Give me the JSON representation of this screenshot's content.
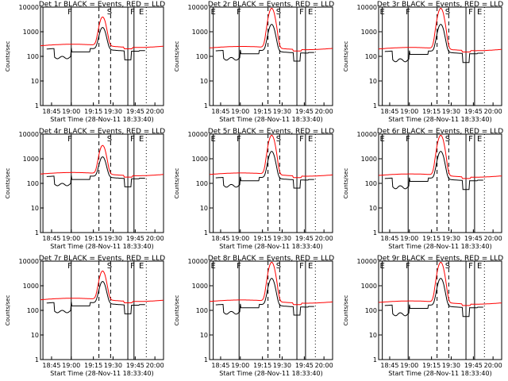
{
  "colors": {
    "events": "#000000",
    "lld": "#ff0000",
    "background": "#ffffff"
  },
  "chart_data": [
    {
      "type": "line",
      "title": "Det 1r  BLACK = Events, RED = LLD",
      "xlabel": "Start Time (28-Nov-11 18:33:40)",
      "ylabel": "Counts/sec",
      "x_tick_labels": [
        "18:45",
        "19:00",
        "19:15",
        "19:30",
        "19:45",
        "20:00"
      ],
      "y_tick_labels": [
        "10000",
        "1000",
        "100",
        "10",
        "1"
      ],
      "ylim": [
        1,
        10000
      ],
      "y_scale": "log",
      "grid": false,
      "interval_marks": [
        "F",
        "S",
        "F",
        "E"
      ],
      "series": [
        {
          "name": "Events",
          "color": "#000000",
          "peak": 1500,
          "dip": 90,
          "base": 190
        },
        {
          "name": "LLD",
          "color": "#ff0000",
          "peak": 4000,
          "base": 270
        }
      ]
    },
    {
      "type": "line",
      "title": "Det 2r  BLACK = Events, RED = LLD",
      "xlabel": "Start Time (28-Nov-11 18:33:40)",
      "ylabel": "Counts/sec",
      "x_tick_labels": [
        "18:45",
        "19:00",
        "19:15",
        "19:30",
        "19:45",
        "20:00"
      ],
      "y_tick_labels": [
        "10000",
        "1000",
        "100",
        "10",
        "1"
      ],
      "ylim": [
        1,
        10000
      ],
      "y_scale": "log",
      "grid": false,
      "interval_marks": [
        "E",
        "F",
        "S",
        "F",
        "E"
      ],
      "series": [
        {
          "name": "Events",
          "color": "#000000",
          "peak": 2000,
          "dip": 80,
          "base": 160
        },
        {
          "name": "LLD",
          "color": "#ff0000",
          "peak": 9000,
          "base": 220
        }
      ]
    },
    {
      "type": "line",
      "title": "Det 3r  BLACK = Events, RED = LLD",
      "xlabel": "Start Time (28-Nov-11 18:33:40)",
      "ylabel": "Counts/sec",
      "x_tick_labels": [
        "18:45",
        "19:00",
        "19:15",
        "19:30",
        "19:45",
        "20:00"
      ],
      "y_tick_labels": [
        "10000",
        "1000",
        "100",
        "10",
        "1"
      ],
      "ylim": [
        1,
        10000
      ],
      "y_scale": "log",
      "grid": false,
      "interval_marks": [
        "E",
        "F",
        "S",
        "F",
        "E"
      ],
      "series": [
        {
          "name": "Events",
          "color": "#000000",
          "peak": 2000,
          "dip": 70,
          "base": 150
        },
        {
          "name": "LLD",
          "color": "#ff0000",
          "peak": 9000,
          "base": 200
        }
      ]
    },
    {
      "type": "line",
      "title": "Det 4r  BLACK = Events, RED = LLD",
      "xlabel": "Start Time (28-Nov-11 18:33:40)",
      "ylabel": "Counts/sec",
      "x_tick_labels": [
        "18:45",
        "19:00",
        "19:15",
        "19:30",
        "19:45",
        "20:00"
      ],
      "y_tick_labels": [
        "10000",
        "1000",
        "100",
        "10",
        "1"
      ],
      "ylim": [
        1,
        10000
      ],
      "y_scale": "log",
      "grid": false,
      "interval_marks": [
        "F",
        "S",
        "F",
        "E"
      ],
      "series": [
        {
          "name": "Events",
          "color": "#000000",
          "peak": 1200,
          "dip": 90,
          "base": 180
        },
        {
          "name": "LLD",
          "color": "#ff0000",
          "peak": 3500,
          "base": 240
        }
      ]
    },
    {
      "type": "line",
      "title": "Det 5r  BLACK = Events, RED = LLD",
      "xlabel": "Start Time (28-Nov-11 18:33:40)",
      "ylabel": "Counts/sec",
      "x_tick_labels": [
        "18:45",
        "19:00",
        "19:15",
        "19:30",
        "19:45",
        "20:00"
      ],
      "y_tick_labels": [
        "10000",
        "1000",
        "100",
        "10",
        "1"
      ],
      "ylim": [
        1,
        10000
      ],
      "y_scale": "log",
      "grid": false,
      "interval_marks": [
        "E",
        "F",
        "S",
        "F",
        "E"
      ],
      "series": [
        {
          "name": "Events",
          "color": "#000000",
          "peak": 2000,
          "dip": 80,
          "base": 160
        },
        {
          "name": "LLD",
          "color": "#ff0000",
          "peak": 9000,
          "base": 230
        }
      ]
    },
    {
      "type": "line",
      "title": "Det 6r  BLACK = Events, RED = LLD",
      "xlabel": "Start Time (28-Nov-11 18:33:40)",
      "ylabel": "Counts/sec",
      "x_tick_labels": [
        "18:45",
        "19:00",
        "19:15",
        "19:30",
        "19:45",
        "20:00"
      ],
      "y_tick_labels": [
        "10000",
        "1000",
        "100",
        "10",
        "1"
      ],
      "ylim": [
        1,
        10000
      ],
      "y_scale": "log",
      "grid": false,
      "interval_marks": [
        "E",
        "F",
        "S",
        "F",
        "E"
      ],
      "series": [
        {
          "name": "Events",
          "color": "#000000",
          "peak": 2000,
          "dip": 70,
          "base": 150
        },
        {
          "name": "LLD",
          "color": "#ff0000",
          "peak": 9000,
          "base": 210
        }
      ]
    },
    {
      "type": "line",
      "title": "Det 7r  BLACK = Events, RED = LLD",
      "xlabel": "Start Time (28-Nov-11 18:33:40)",
      "ylabel": "Counts/sec",
      "x_tick_labels": [
        "18:45",
        "19:00",
        "19:15",
        "19:30",
        "19:45",
        "20:00"
      ],
      "y_tick_labels": [
        "10000",
        "1000",
        "100",
        "10",
        "1"
      ],
      "ylim": [
        1,
        10000
      ],
      "y_scale": "log",
      "grid": false,
      "interval_marks": [
        "F",
        "S",
        "F",
        "E"
      ],
      "series": [
        {
          "name": "Events",
          "color": "#000000",
          "peak": 1500,
          "dip": 90,
          "base": 190
        },
        {
          "name": "LLD",
          "color": "#ff0000",
          "peak": 4000,
          "base": 270
        }
      ]
    },
    {
      "type": "line",
      "title": "Det 8r  BLACK = Events, RED = LLD",
      "xlabel": "Start Time (28-Nov-11 18:33:40)",
      "ylabel": "Counts/sec",
      "x_tick_labels": [
        "18:45",
        "19:00",
        "19:15",
        "19:30",
        "19:45",
        "20:00"
      ],
      "y_tick_labels": [
        "10000",
        "1000",
        "100",
        "10",
        "1"
      ],
      "ylim": [
        1,
        10000
      ],
      "y_scale": "log",
      "grid": false,
      "interval_marks": [
        "E",
        "F",
        "S",
        "F",
        "E"
      ],
      "series": [
        {
          "name": "Events",
          "color": "#000000",
          "peak": 2000,
          "dip": 80,
          "base": 160
        },
        {
          "name": "LLD",
          "color": "#ff0000",
          "peak": 9000,
          "base": 230
        }
      ]
    },
    {
      "type": "line",
      "title": "Det 9r  BLACK = Events, RED = LLD",
      "xlabel": "Start Time (28-Nov-11 18:33:40)",
      "ylabel": "Counts/sec",
      "x_tick_labels": [
        "18:45",
        "19:00",
        "19:15",
        "19:30",
        "19:45",
        "20:00"
      ],
      "y_tick_labels": [
        "10000",
        "1000",
        "100",
        "10",
        "1"
      ],
      "ylim": [
        1,
        10000
      ],
      "y_scale": "log",
      "grid": false,
      "interval_marks": [
        "E",
        "F",
        "S",
        "F",
        "E"
      ],
      "series": [
        {
          "name": "Events",
          "color": "#000000",
          "peak": 2000,
          "dip": 70,
          "base": 150
        },
        {
          "name": "LLD",
          "color": "#ff0000",
          "peak": 9000,
          "base": 210
        }
      ]
    }
  ]
}
